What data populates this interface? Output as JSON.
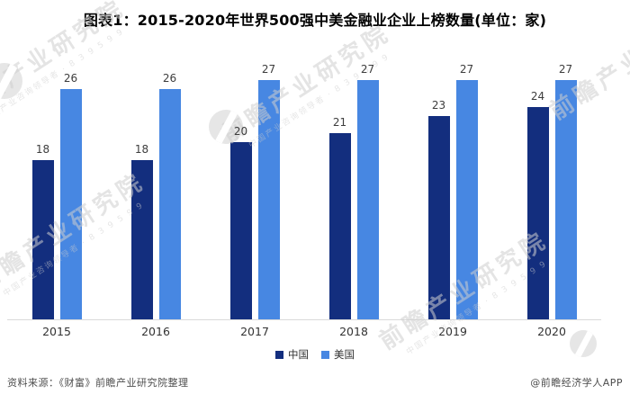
{
  "title": "图表1：2015-2020年世界500强中美金融业企业上榜数量(单位：家)",
  "chart_data": {
    "type": "bar",
    "categories": [
      "2015",
      "2016",
      "2017",
      "2018",
      "2019",
      "2020"
    ],
    "series": [
      {
        "name": "中国",
        "color": "#132e7e",
        "values": [
          18,
          18,
          20,
          21,
          23,
          24
        ]
      },
      {
        "name": "美国",
        "color": "#4787e2",
        "values": [
          26,
          26,
          27,
          27,
          27,
          27
        ]
      }
    ],
    "ylim": [
      0,
      27
    ],
    "unit": "家",
    "grid": false,
    "legend_position": "bottom",
    "value_labels": true,
    "axis_color": "#d9d9d9"
  },
  "legend": [
    {
      "label": "中国",
      "color": "#132e7e"
    },
    {
      "label": "美国",
      "color": "#4787e2"
    }
  ],
  "footer": {
    "source": "资料来源：《财富》前瞻产业研究院整理",
    "brand": "@前瞻经济学人APP"
  },
  "watermark": {
    "text": "前瞻产业研究院",
    "subtext": "中国产业咨询领导者 · 8 3 9 5 9 9"
  },
  "colors": {
    "title": "#000000",
    "value_label": "#3d3d3d",
    "tick_label": "#333333",
    "footer_text": "#4d4d4d",
    "axis": "#d9d9d9"
  }
}
